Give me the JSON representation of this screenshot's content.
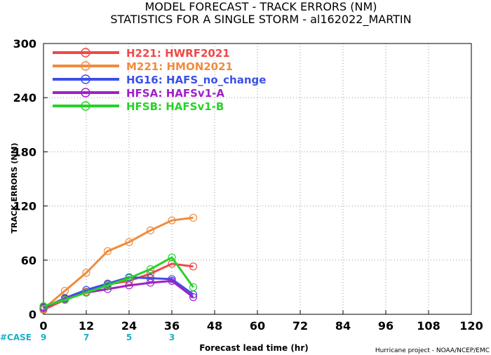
{
  "chart_data": {
    "type": "line",
    "title": "MODEL FORECAST - TRACK ERRORS (NM)",
    "subtitle": "STATISTICS FOR A SINGLE STORM - al162022_MARTIN",
    "xlabel": "Forecast lead time (hr)",
    "ylabel": "TRACK ERRORS (NM)",
    "xlim": [
      0,
      120
    ],
    "ylim": [
      0,
      300
    ],
    "xticks": [
      0,
      12,
      24,
      36,
      48,
      60,
      72,
      84,
      96,
      108,
      120
    ],
    "yticks": [
      0,
      60,
      120,
      180,
      240,
      300
    ],
    "x": [
      0,
      6,
      12,
      18,
      24,
      30,
      36,
      42
    ],
    "grid": true,
    "legend_position": "top-left",
    "series": [
      {
        "name": "H221: HWRF2021",
        "color": "#f04848",
        "values": [
          5,
          16,
          25,
          33,
          37,
          45,
          56,
          53
        ]
      },
      {
        "name": "M221: HMON2021",
        "color": "#f08c3c",
        "values": [
          6,
          26,
          46,
          70,
          80,
          93,
          104,
          107
        ]
      },
      {
        "name": "HG16: HAFS_no_change",
        "color": "#3c50e6",
        "values": [
          7,
          18,
          27,
          34,
          41,
          40,
          39,
          22
        ]
      },
      {
        "name": "HFSA: HAFSv1-A",
        "color": "#a020c8",
        "values": [
          8,
          17,
          24,
          28,
          32,
          35,
          37,
          19
        ]
      },
      {
        "name": "HFSB: HAFSv1-B",
        "color": "#28d228",
        "values": [
          9,
          16,
          24,
          32,
          40,
          50,
          63,
          30
        ]
      }
    ],
    "case_label": "#CASE",
    "case_counts": [
      {
        "x": 0,
        "n": "9"
      },
      {
        "x": 12,
        "n": "7"
      },
      {
        "x": 24,
        "n": "5"
      },
      {
        "x": 36,
        "n": "3"
      }
    ],
    "credit": "Hurricane project - NOAA/NCEP/EMC"
  }
}
